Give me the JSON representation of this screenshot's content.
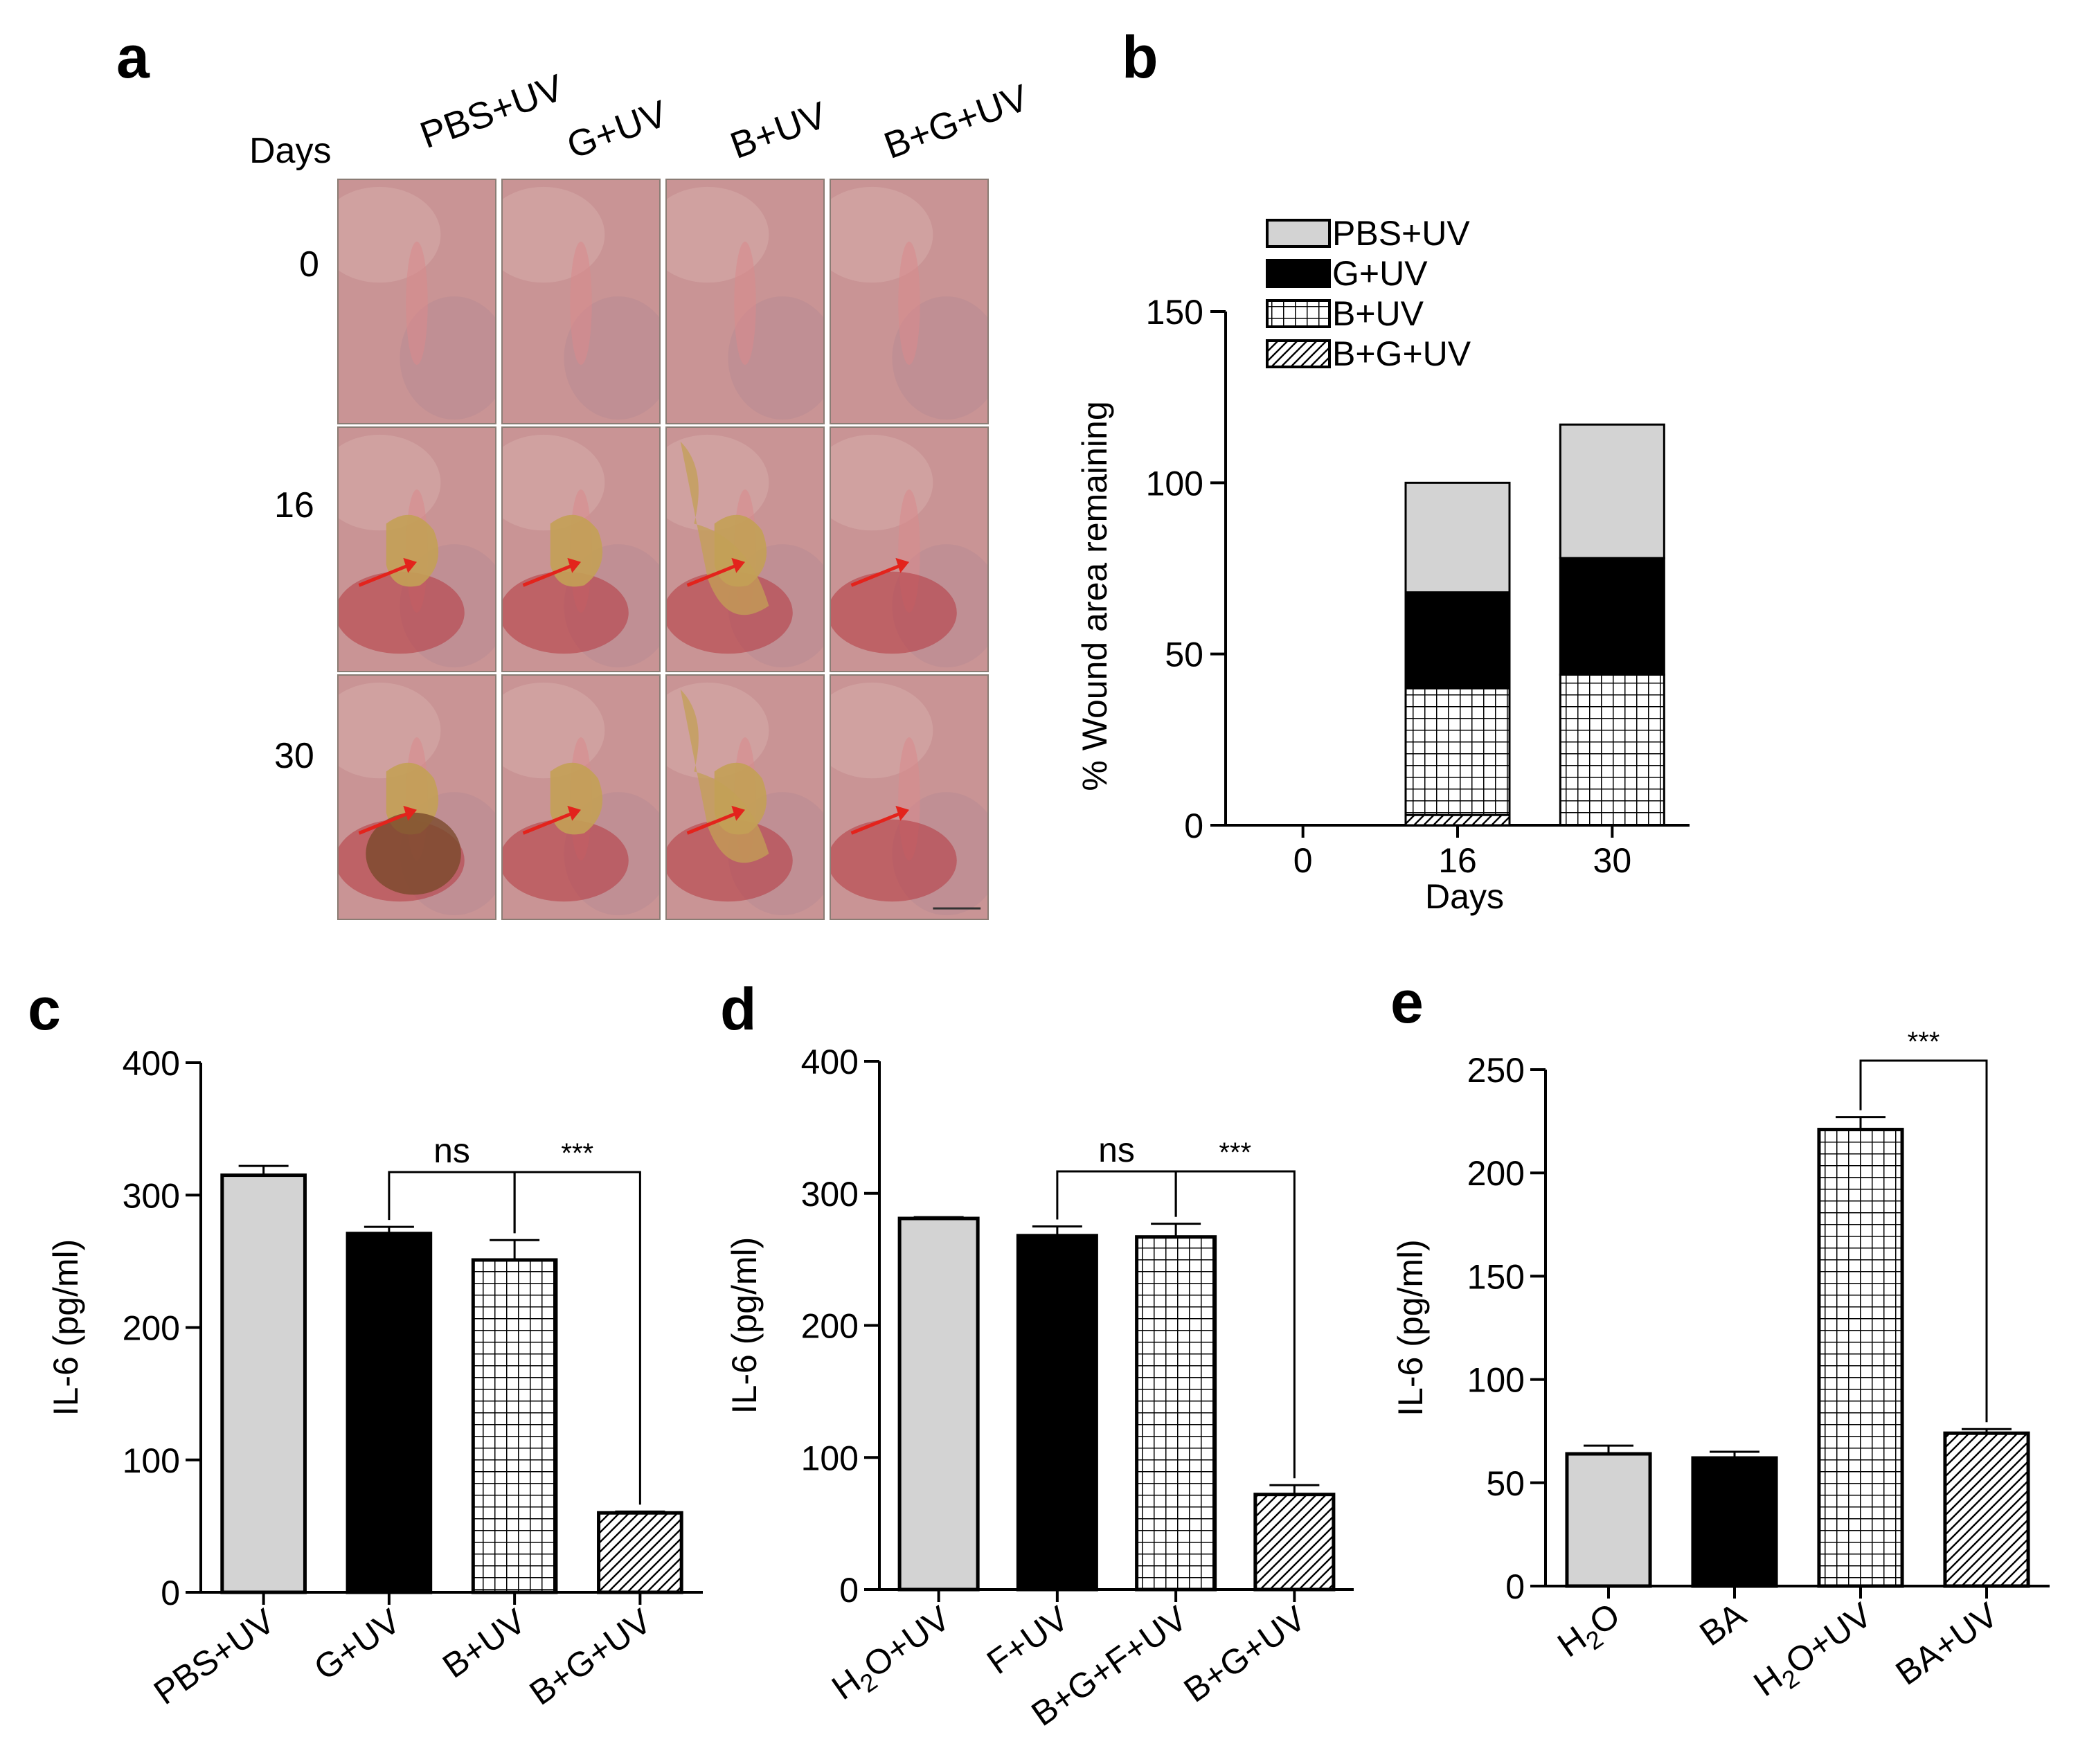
{
  "panel_a": {
    "letter": "a",
    "days_header": "Days",
    "groups": [
      "PBS+UV",
      "G+UV",
      "B+UV",
      "B+G+UV"
    ],
    "days": [
      "0",
      "16",
      "30"
    ],
    "photo_colors": {
      "skin": "#c99495",
      "skin_light": "#d6aaa8",
      "wound_red": "#b5383f",
      "scab": "#c3a055",
      "scab_dark": "#7a4a2c",
      "arrow": "#e3231c"
    }
  },
  "chart_data": [
    {
      "panel": "b",
      "type": "bar",
      "stacked": true,
      "title": "",
      "xlabel": "Days",
      "ylabel": "%  Wound area remaining",
      "categories": [
        "0",
        "16",
        "30"
      ],
      "ylim": [
        0,
        150
      ],
      "yticks": [
        0,
        50,
        100,
        150
      ],
      "series": [
        {
          "name": "B+G+UV",
          "pattern": "diagonal",
          "values": [
            0,
            3,
            0
          ]
        },
        {
          "name": "B+UV",
          "pattern": "grid",
          "values": [
            0,
            37,
            44
          ]
        },
        {
          "name": "G+UV",
          "pattern": "black",
          "values": [
            0,
            28,
            34
          ]
        },
        {
          "name": "PBS+UV",
          "pattern": "gray",
          "values": [
            0,
            32,
            39
          ]
        }
      ],
      "legend_order": [
        "PBS+UV",
        "G+UV",
        "B+UV",
        "B+G+UV"
      ],
      "legend": "top-left"
    },
    {
      "panel": "c",
      "type": "bar",
      "title": "",
      "xlabel": "",
      "ylabel": "IL-6 (pg/ml)",
      "categories": [
        "PBS+UV",
        "G+UV",
        "B+UV",
        "B+G+UV"
      ],
      "values": [
        315,
        271,
        251,
        60
      ],
      "errors": [
        7,
        5,
        15,
        1
      ],
      "patterns": [
        "gray",
        "black",
        "grid",
        "diagonal"
      ],
      "ylim": [
        0,
        400
      ],
      "yticks": [
        0,
        100,
        200,
        300,
        400
      ],
      "annotations": [
        {
          "from": 1,
          "to": 2,
          "label": "ns"
        },
        {
          "from": 2,
          "to": 3,
          "label": "***"
        }
      ]
    },
    {
      "panel": "d",
      "type": "bar",
      "title": "",
      "xlabel": "",
      "ylabel": "IL-6 (pg/ml)",
      "categories": [
        "H2O+UV",
        "F+UV",
        "B+G+F+UV",
        "B+G+UV"
      ],
      "values": [
        281,
        268,
        267,
        72
      ],
      "errors": [
        1,
        7,
        10,
        7
      ],
      "patterns": [
        "gray",
        "black",
        "grid",
        "diagonal"
      ],
      "ylim": [
        0,
        400
      ],
      "yticks": [
        0,
        100,
        200,
        300,
        400
      ],
      "annotations": [
        {
          "from": 1,
          "to": 2,
          "label": "ns"
        },
        {
          "from": 2,
          "to": 3,
          "label": "***"
        }
      ]
    },
    {
      "panel": "e",
      "type": "bar",
      "title": "",
      "xlabel": "",
      "ylabel": "IL-6 (pg/ml)",
      "categories": [
        "H2O",
        "BA",
        "H2O+UV",
        "BA+UV"
      ],
      "values": [
        64,
        62,
        221,
        74
      ],
      "errors": [
        4,
        3,
        6,
        2
      ],
      "patterns": [
        "gray",
        "black",
        "grid",
        "diagonal"
      ],
      "ylim": [
        0,
        250
      ],
      "yticks": [
        0,
        50,
        100,
        150,
        200,
        250
      ],
      "annotations": [
        {
          "from": 2,
          "to": 3,
          "label": "***"
        }
      ]
    }
  ],
  "colors": {
    "gray_fill": "#d3d3d3",
    "black_fill": "#000000",
    "line": "#000000"
  }
}
